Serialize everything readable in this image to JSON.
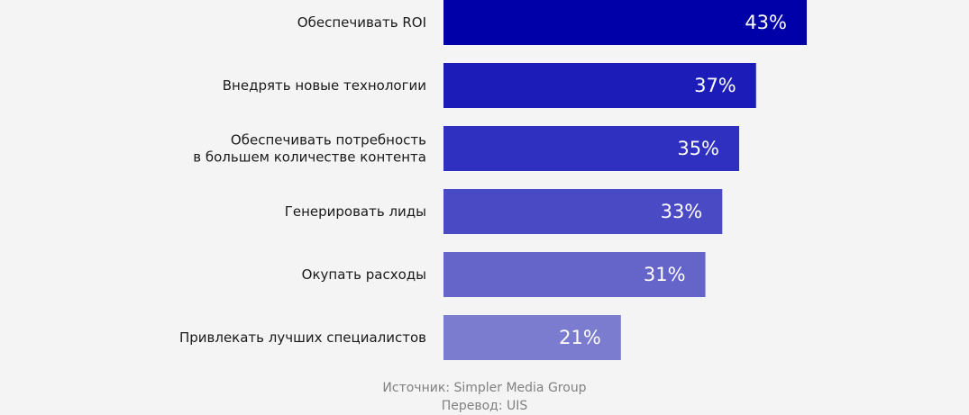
{
  "chart_data": {
    "type": "bar",
    "orientation": "horizontal",
    "categories": [
      [
        "Обеспечивать ROI"
      ],
      [
        "Внедрять новые технологии"
      ],
      [
        "Обеспечивать потребность",
        "в большем количестве контента"
      ],
      [
        "Генерировать лиды"
      ],
      [
        "Окупать расходы"
      ],
      [
        "Привлекать лучших специалистов"
      ]
    ],
    "values": [
      43,
      37,
      35,
      33,
      31,
      21
    ],
    "value_labels": [
      "43%",
      "37%",
      "35%",
      "33%",
      "31%",
      "21%"
    ],
    "colors": [
      "#0000a8",
      "#1c1db8",
      "#2f2fc0",
      "#4a4ac4",
      "#6464c9",
      "#7b7bcf"
    ],
    "xlim": [
      0,
      43
    ],
    "grid": false,
    "legend": "none"
  },
  "footer": {
    "source": "Источник: Simpler Media Group",
    "translation": "Перевод: UIS"
  }
}
